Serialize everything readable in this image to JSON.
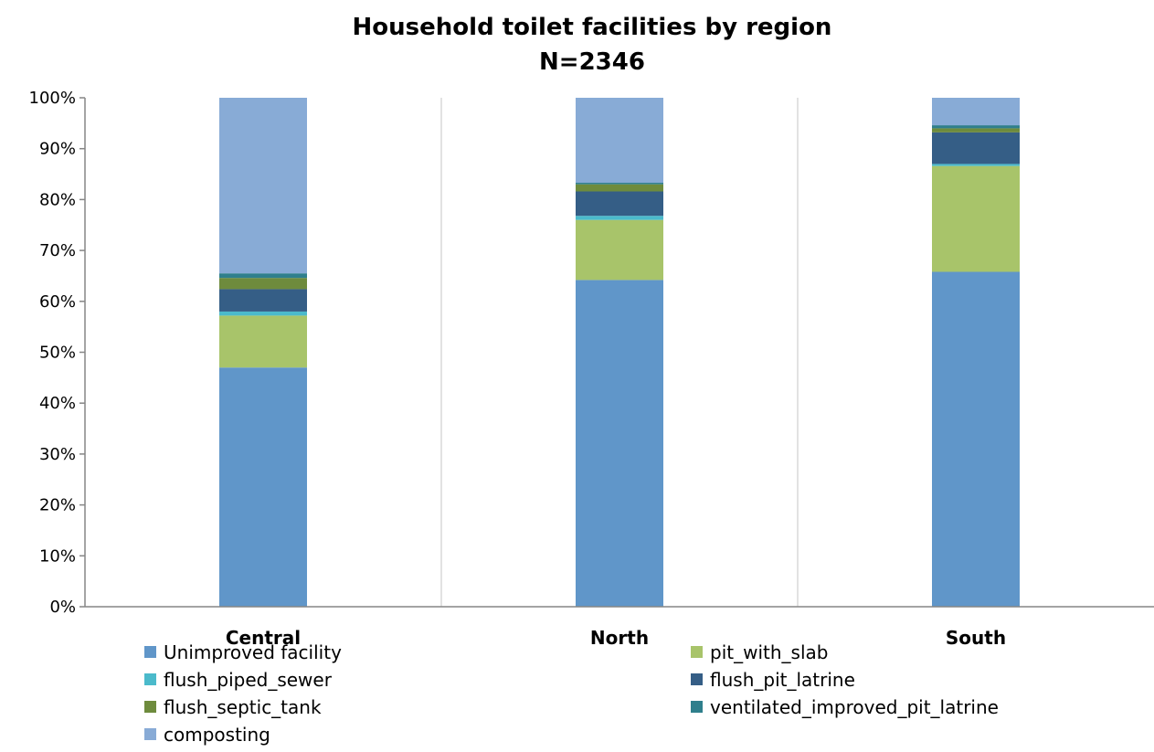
{
  "chart_data": {
    "type": "bar",
    "stacked": true,
    "percent": true,
    "title": "Household toilet facilities by region",
    "subtitle": "N=2346",
    "categories": [
      "Central",
      "North",
      "South"
    ],
    "y_ticks": [
      "0%",
      "10%",
      "20%",
      "30%",
      "40%",
      "50%",
      "60%",
      "70%",
      "80%",
      "90%",
      "100%"
    ],
    "ylim": [
      0,
      100
    ],
    "grid": "vertical separators between categories",
    "legend_position": "bottom",
    "series": [
      {
        "name": "Unimproved facility",
        "color": "#6096C9",
        "values": [
          47.0,
          64.2,
          65.8
        ]
      },
      {
        "name": "pit_with_slab",
        "color": "#A8C46A",
        "values": [
          10.2,
          11.8,
          20.8
        ]
      },
      {
        "name": "flush_piped_sewer",
        "color": "#4BBACB",
        "values": [
          0.8,
          0.8,
          0.4
        ]
      },
      {
        "name": "flush_pit_latrine",
        "color": "#355E86",
        "values": [
          4.4,
          4.8,
          6.2
        ]
      },
      {
        "name": "flush_septic_tank",
        "color": "#6E8B3D",
        "values": [
          2.2,
          1.4,
          0.8
        ]
      },
      {
        "name": "ventilated_improved_pit_latrine",
        "color": "#2F7F8C",
        "values": [
          0.9,
          0.3,
          0.6
        ]
      },
      {
        "name": "composting",
        "color": "#88ABD6",
        "values": [
          34.5,
          16.7,
          5.4
        ]
      }
    ]
  }
}
